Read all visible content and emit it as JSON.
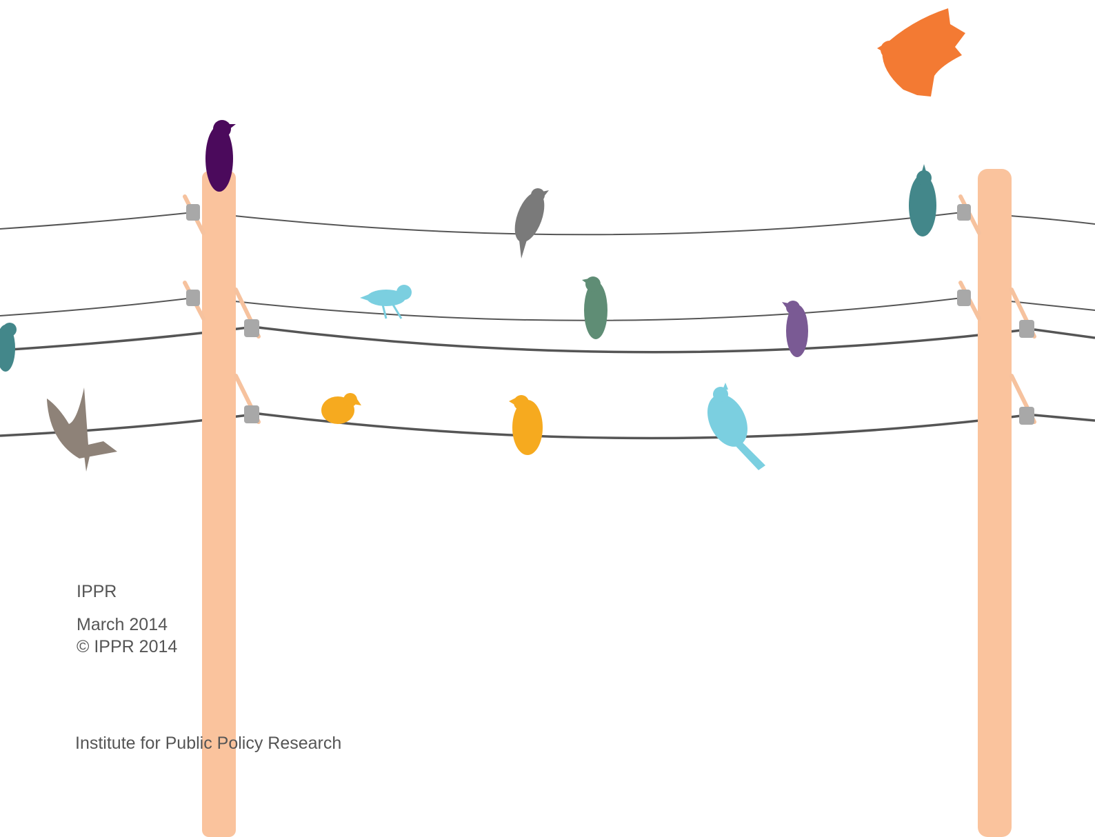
{
  "publisher": "IPPR",
  "date": "March 2014",
  "copyright": "© IPPR 2014",
  "organisation": "Institute for Public Policy Research"
}
